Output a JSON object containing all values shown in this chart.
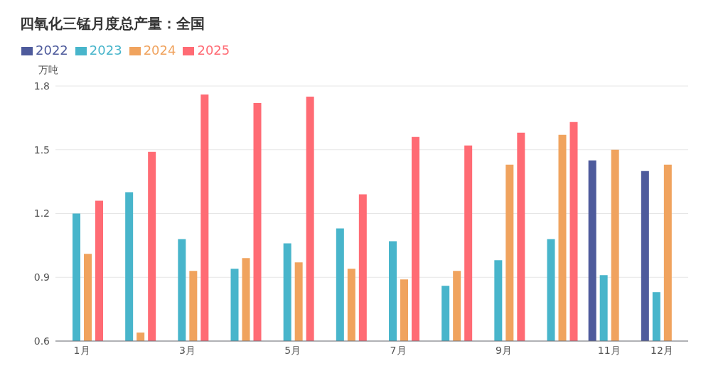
{
  "chart_data": {
    "type": "bar",
    "title": "四氧化三锰月度总产量：全国",
    "ylabel": "万吨",
    "categories": [
      "1月",
      null,
      "3月",
      null,
      "5月",
      null,
      "7月",
      null,
      "9月",
      null,
      "11月",
      "12月"
    ],
    "series": [
      {
        "name": "2022",
        "color": "#4e5b9c",
        "values": [
          null,
          null,
          null,
          null,
          null,
          null,
          null,
          null,
          null,
          null,
          1.45,
          1.4
        ]
      },
      {
        "name": "2023",
        "color": "#48b5cb",
        "values": [
          1.2,
          1.3,
          1.08,
          0.94,
          1.06,
          1.13,
          1.07,
          0.86,
          0.98,
          1.08,
          0.91,
          0.83
        ]
      },
      {
        "name": "2024",
        "color": "#f0a35e",
        "values": [
          1.01,
          0.64,
          0.93,
          0.99,
          0.97,
          0.94,
          0.89,
          0.93,
          1.43,
          1.57,
          1.5,
          1.43
        ]
      },
      {
        "name": "2025",
        "color": "#ff6b74",
        "values": [
          1.26,
          1.49,
          1.76,
          1.72,
          1.75,
          1.29,
          1.56,
          1.52,
          1.58,
          1.63,
          null,
          null
        ]
      }
    ],
    "ylim": [
      0.6,
      1.8
    ],
    "yticks": [
      0.6,
      0.9,
      1.2,
      1.5,
      1.8
    ],
    "grid": "y",
    "legend": "top left"
  }
}
